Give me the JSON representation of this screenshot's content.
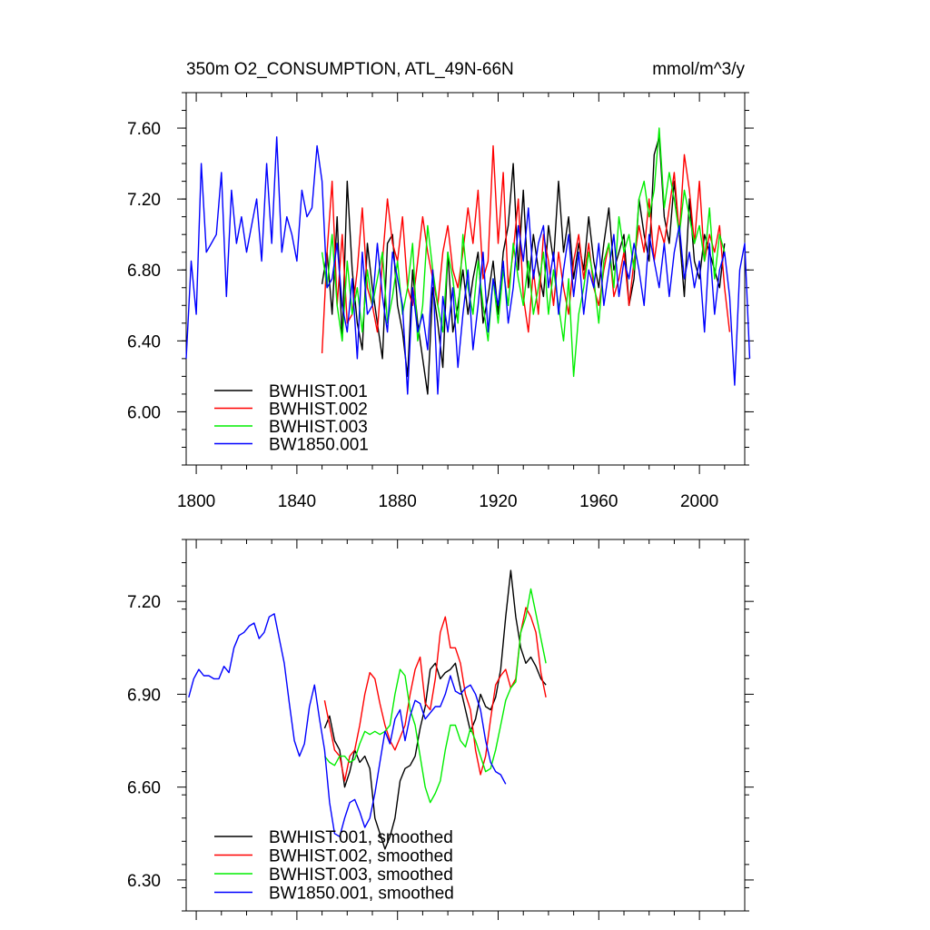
{
  "colors": {
    "BWHIST.001": "#000000",
    "BWHIST.002": "#ff0000",
    "BWHIST.003": "#00ee00",
    "BW1850.001": "#0000ff"
  },
  "chart_data": [
    {
      "type": "line",
      "title": "350m O2_CONSUMPTION, ATL_49N-66N",
      "units": "mmol/m^3/y",
      "xlim": [
        1796,
        2018
      ],
      "ylim": [
        5.7,
        7.8
      ],
      "xticks": [
        1800,
        1840,
        1880,
        1920,
        1960,
        2000
      ],
      "yticks": [
        6.0,
        6.4,
        6.8,
        7.2,
        7.6
      ],
      "ytick_labels": [
        "6.00",
        "6.40",
        "6.80",
        "7.20",
        "7.60"
      ],
      "legend": [
        "BWHIST.001",
        "BWHIST.002",
        "BWHIST.003",
        "BW1850.001"
      ],
      "legend_position": "bottom-left",
      "series": [
        {
          "name": "BWHIST.001",
          "start": 1850,
          "step": 2,
          "values": [
            6.72,
            6.9,
            6.55,
            7.1,
            6.4,
            7.3,
            6.8,
            6.5,
            6.35,
            6.95,
            6.7,
            6.5,
            6.3,
            6.95,
            7.0,
            6.6,
            6.45,
            6.2,
            6.8,
            6.5,
            6.3,
            6.1,
            6.7,
            6.5,
            6.25,
            6.9,
            6.45,
            6.6,
            6.8,
            6.55,
            6.75,
            6.9,
            6.5,
            6.65,
            6.85,
            6.55,
            6.9,
            7.05,
            7.4,
            6.8,
            7.25,
            6.7,
            7.0,
            6.8,
            6.65,
            7.05,
            6.85,
            7.3,
            6.9,
            7.1,
            6.75,
            6.95,
            6.8,
            7.1,
            6.85,
            6.7,
            6.95,
            7.15,
            6.8,
            6.9,
            7.0,
            6.6,
            6.75,
            7.2,
            7.0,
            6.85,
            7.45,
            7.55,
            7.1,
            6.95,
            7.3,
            7.0,
            6.65,
            7.2,
            6.85,
            6.75,
            7.0,
            6.9,
            6.8,
            6.7,
            6.95
          ]
        },
        {
          "name": "BWHIST.002",
          "start": 1850,
          "step": 2,
          "values": [
            6.33,
            6.9,
            7.3,
            6.6,
            7.0,
            6.5,
            6.55,
            6.8,
            7.15,
            6.7,
            6.6,
            6.45,
            6.85,
            7.2,
            6.95,
            6.85,
            7.1,
            6.7,
            6.6,
            6.85,
            7.1,
            6.9,
            6.75,
            6.6,
            6.9,
            7.05,
            6.8,
            6.7,
            6.9,
            7.15,
            6.95,
            7.25,
            6.75,
            6.85,
            7.5,
            6.95,
            7.35,
            6.7,
            6.9,
            7.2,
            6.65,
            6.45,
            6.8,
            6.55,
            7.0,
            6.85,
            6.6,
            6.9,
            6.7,
            6.55,
            6.85,
            7.0,
            6.75,
            6.95,
            6.7,
            6.6,
            6.8,
            6.95,
            6.65,
            6.75,
            6.9,
            6.6,
            6.85,
            7.05,
            6.9,
            7.2,
            6.85,
            7.05,
            6.95,
            7.15,
            7.35,
            7.0,
            7.45,
            7.25,
            6.95,
            7.3,
            6.85,
            7.0,
            6.9,
            7.05,
            6.7,
            6.45
          ]
        },
        {
          "name": "BWHIST.003",
          "start": 1850,
          "step": 2,
          "values": [
            6.9,
            6.7,
            7.0,
            6.6,
            6.4,
            6.85,
            6.55,
            6.7,
            6.45,
            6.8,
            6.6,
            6.75,
            6.9,
            6.5,
            6.65,
            6.85,
            6.55,
            6.7,
            6.95,
            6.4,
            6.6,
            7.05,
            6.8,
            6.6,
            6.45,
            6.9,
            6.75,
            6.5,
            7.0,
            6.7,
            6.55,
            6.85,
            6.6,
            6.4,
            6.75,
            6.5,
            6.8,
            6.6,
            6.95,
            6.75,
            6.6,
            6.85,
            6.55,
            6.7,
            6.9,
            6.55,
            6.8,
            6.6,
            6.4,
            6.75,
            6.2,
            6.55,
            6.7,
            6.9,
            6.75,
            6.5,
            6.85,
            6.95,
            6.7,
            7.1,
            6.9,
            7.0,
            6.8,
            7.2,
            7.3,
            7.1,
            7.25,
            7.6,
            7.15,
            7.35,
            7.2,
            7.0,
            7.25,
            7.1,
            6.95,
            7.05,
            6.85,
            7.15,
            6.75,
            7.0,
            6.9
          ]
        },
        {
          "name": "BW1850.001",
          "start": 1796,
          "step": 2,
          "values": [
            6.3,
            6.85,
            6.55,
            7.4,
            6.9,
            6.95,
            7.0,
            7.35,
            6.65,
            7.25,
            6.95,
            7.1,
            6.9,
            7.05,
            7.2,
            6.85,
            7.4,
            6.95,
            7.55,
            6.9,
            7.1,
            7.0,
            6.85,
            7.25,
            7.1,
            7.15,
            7.5,
            7.3,
            6.7,
            6.75,
            6.95,
            6.6,
            6.45,
            6.75,
            6.3,
            6.9,
            6.55,
            6.6,
            6.95,
            6.65,
            6.45,
            6.9,
            6.75,
            6.6,
            6.1,
            6.7,
            6.45,
            6.55,
            6.35,
            6.8,
            6.1,
            6.65,
            6.45,
            6.7,
            6.25,
            6.55,
            6.8,
            6.35,
            6.6,
            6.9,
            6.45,
            6.75,
            6.6,
            6.85,
            6.5,
            6.7,
            7.05,
            6.85,
            7.15,
            6.75,
            6.95,
            7.05,
            6.7,
            6.9,
            6.55,
            6.8,
            7.0,
            6.65,
            6.9,
            6.55,
            6.8,
            6.7,
            6.95,
            6.6,
            6.8,
            7.0,
            6.65,
            6.85,
            6.75,
            6.95,
            6.8,
            6.6,
            7.0,
            6.85,
            6.7,
            6.95,
            6.65,
            6.9,
            7.05,
            6.75,
            6.9,
            6.7,
            6.85,
            6.45,
            6.95,
            6.55,
            6.8,
            6.9,
            6.65,
            6.15,
            6.8,
            6.95,
            6.3
          ]
        }
      ]
    },
    {
      "type": "line",
      "title": "",
      "xlim": [
        1796,
        2018
      ],
      "ylim": [
        6.2,
        7.4
      ],
      "xticks": [
        1800,
        1840,
        1880,
        1920,
        1960,
        2000
      ],
      "yticks": [
        6.3,
        6.6,
        6.9,
        7.2
      ],
      "ytick_labels": [
        "6.30",
        "6.60",
        "6.90",
        "7.20"
      ],
      "legend": [
        "BWHIST.001, smoothed",
        "BWHIST.002, smoothed",
        "BWHIST.003, smoothed",
        "BW1850.001, smoothed"
      ],
      "legend_position": "bottom-left",
      "series": [
        {
          "name": "BWHIST.001",
          "start": 1851,
          "step": 2,
          "values": [
            6.79,
            6.83,
            6.75,
            6.72,
            6.6,
            6.65,
            6.72,
            6.68,
            6.7,
            6.66,
            6.5,
            6.45,
            6.4,
            6.44,
            6.5,
            6.62,
            6.66,
            6.67,
            6.7,
            6.79,
            6.86,
            6.98,
            7.0,
            6.95,
            6.97,
            6.98,
            7.0,
            6.92,
            6.85,
            6.78,
            6.82,
            6.9,
            6.86,
            6.85,
            6.89,
            6.98,
            7.15,
            7.3,
            7.15,
            7.05,
            7.0,
            7.02,
            6.99,
            6.95,
            6.93
          ]
        },
        {
          "name": "BWHIST.002",
          "start": 1851,
          "step": 2,
          "values": [
            6.88,
            6.8,
            6.72,
            6.7,
            6.62,
            6.7,
            6.72,
            6.8,
            6.9,
            6.97,
            6.95,
            6.87,
            6.8,
            6.75,
            6.72,
            6.76,
            6.8,
            6.9,
            6.98,
            7.02,
            6.87,
            6.85,
            6.95,
            7.1,
            7.15,
            7.05,
            7.05,
            7.0,
            6.9,
            6.85,
            6.72,
            6.64,
            6.7,
            6.82,
            6.93,
            6.96,
            6.98,
            6.92,
            6.95,
            7.1,
            7.18,
            7.15,
            7.1,
            6.97,
            6.89
          ]
        },
        {
          "name": "BWHIST.003",
          "start": 1851,
          "step": 2,
          "values": [
            6.7,
            6.68,
            6.67,
            6.7,
            6.7,
            6.68,
            6.69,
            6.74,
            6.78,
            6.77,
            6.78,
            6.77,
            6.78,
            6.8,
            6.9,
            6.98,
            6.96,
            6.85,
            6.8,
            6.7,
            6.6,
            6.55,
            6.58,
            6.62,
            6.72,
            6.8,
            6.8,
            6.75,
            6.73,
            6.79,
            6.75,
            6.7,
            6.65,
            6.66,
            6.72,
            6.8,
            6.88,
            6.92,
            6.94,
            7.1,
            7.15,
            7.24,
            7.16,
            7.08,
            7.0
          ]
        },
        {
          "name": "BW1850.001",
          "start": 1797,
          "step": 2,
          "values": [
            6.89,
            6.95,
            6.98,
            6.96,
            6.96,
            6.95,
            6.95,
            6.99,
            6.97,
            7.05,
            7.09,
            7.1,
            7.12,
            7.13,
            7.08,
            7.1,
            7.15,
            7.16,
            7.08,
            7.0,
            6.87,
            6.75,
            6.7,
            6.74,
            6.86,
            6.93,
            6.82,
            6.72,
            6.55,
            6.45,
            6.44,
            6.5,
            6.55,
            6.56,
            6.52,
            6.47,
            6.5,
            6.58,
            6.68,
            6.78,
            6.74,
            6.82,
            6.85,
            6.75,
            6.83,
            6.88,
            6.87,
            6.82,
            6.84,
            6.86,
            6.86,
            6.9,
            6.96,
            6.91,
            6.9,
            6.92,
            6.93,
            6.9,
            6.85,
            6.75,
            6.68,
            6.65,
            6.64,
            6.61
          ]
        }
      ]
    }
  ]
}
